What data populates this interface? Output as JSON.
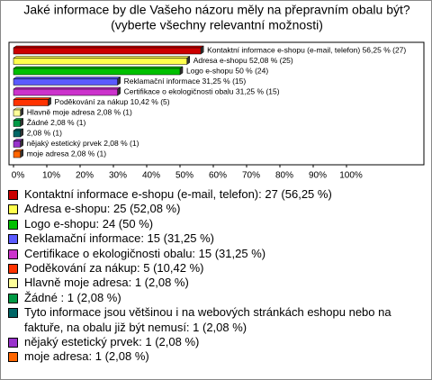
{
  "chart_data": {
    "type": "hbar",
    "title": "Jaké informace by dle Vašeho názoru měly na přepravním obalu být?",
    "subtitle": "(vyberte všechny relevantní možnosti)",
    "categories": [
      "Kontaktní informace e-shopu (e-mail, telefon)",
      "Adresa e-shopu",
      "Logo e-shopu",
      "Reklamační informace",
      "Certifikace o ekologičnosti obalu",
      "Poděkování za nákup",
      "Hlavně moje adresa",
      "Žádné",
      null,
      "nějaký estetický prvek",
      "moje adresa"
    ],
    "values": [
      56.25,
      52.08,
      50,
      31.25,
      31.25,
      10.42,
      2.08,
      2.08,
      2.08,
      2.08,
      2.08
    ],
    "value_labels": [
      "Kontaktní informace e-shopu (e-mail, telefon) 56,25 % (27)",
      "Adresa e-shopu 52,08 % (25)",
      "Logo e-shopu 50 % (24)",
      "Reklamační informace 31,25 % (15)",
      "Certifikace o ekologičnosti obalu 31,25 % (15)",
      "Poděkování za nákup 10,42 % (5)",
      "Hlavně moje adresa 2,08 % (1)",
      "Žádné  2,08 % (1)",
      "2,08 % (1)",
      "nějaký estetický prvek 2,08 % (1)",
      "moje adresa 2,08 % (1)"
    ],
    "colors": [
      "#cc0000",
      "#ffff4d",
      "#00c000",
      "#5a5aff",
      "#cc33cc",
      "#ff3300",
      "#ffff99",
      "#009944",
      "#006666",
      "#9933cc",
      "#ff6600"
    ],
    "legend_labels": [
      "Kontaktní informace e-shopu (e-mail, telefon): 27 (56,25 %)",
      "Adresa e-shopu: 25 (52,08 %)",
      "Logo e-shopu: 24 (50 %)",
      "Reklamační informace: 15 (31,25 %)",
      "Certifikace o ekologičnosti obalu: 15 (31,25 %)",
      "Poděkování za nákup: 5 (10,42 %)",
      "Hlavně moje adresa: 1 (2,08 %)",
      "Žádné : 1 (2,08 %)",
      "Tyto informace jsou většinou i na webových stránkách eshopu nebo na faktuře, na obalu již být nemusí: 1 (2,08 %)",
      "nějaký estetický prvek: 1 (2,08 %)",
      "moje adresa: 1 (2,08 %)"
    ],
    "xlim": [
      0,
      100
    ],
    "xticks": [
      {
        "value": 0,
        "label": "0%"
      },
      {
        "value": 10,
        "label": "10%"
      },
      {
        "value": 20,
        "label": "20%"
      },
      {
        "value": 30,
        "label": "30%"
      },
      {
        "value": 40,
        "label": "40%"
      },
      {
        "value": 50,
        "label": "50%"
      },
      {
        "value": 60,
        "label": "60%"
      },
      {
        "value": 70,
        "label": "70%"
      },
      {
        "value": 80,
        "label": "80%"
      },
      {
        "value": 90,
        "label": "90%"
      },
      {
        "value": 100,
        "label": "100%"
      }
    ]
  }
}
